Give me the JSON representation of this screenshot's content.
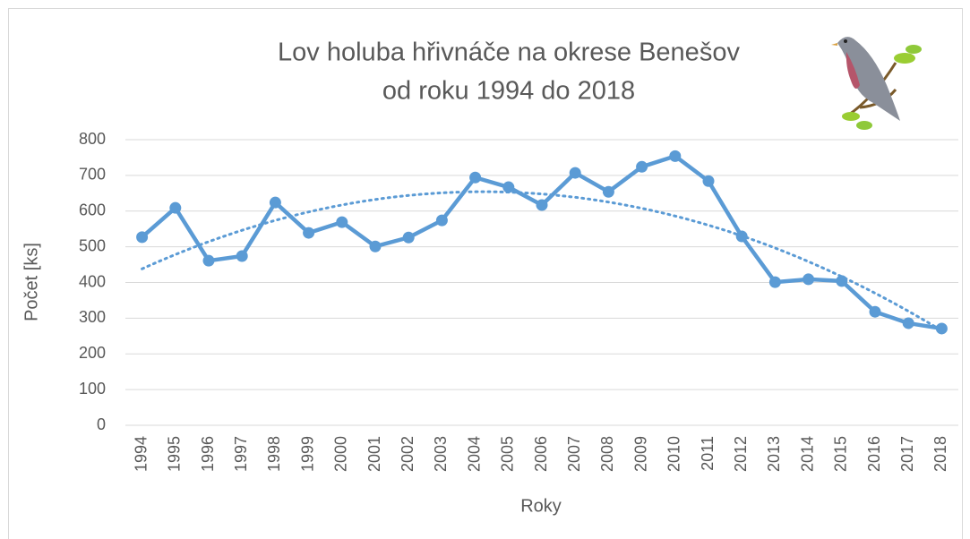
{
  "chart_data": {
    "type": "line",
    "title": "Lov holuba hřivnáče na okrese Benešov",
    "subtitle": "od roku 1994 do 2018",
    "x_label": "Roky",
    "y_label": "Počet [ks]",
    "categories": [
      "1994",
      "1995",
      "1996",
      "1997",
      "1998",
      "1999",
      "2000",
      "2001",
      "2002",
      "2003",
      "2004",
      "2005",
      "2006",
      "2007",
      "2008",
      "2009",
      "2010",
      "2011",
      "2012",
      "2013",
      "2014",
      "2015",
      "2016",
      "2017",
      "2018"
    ],
    "values": [
      527,
      609,
      461,
      474,
      624,
      539,
      569,
      501,
      526,
      574,
      694,
      667,
      617,
      707,
      654,
      724,
      754,
      684,
      529,
      401,
      409,
      404,
      318,
      286,
      271
    ],
    "color": "#5b9bd5",
    "trendline": "polynomial",
    "ylim": [
      0,
      800
    ],
    "yticks": [
      0,
      100,
      200,
      300,
      400,
      500,
      600,
      700,
      800
    ],
    "grid": true
  }
}
